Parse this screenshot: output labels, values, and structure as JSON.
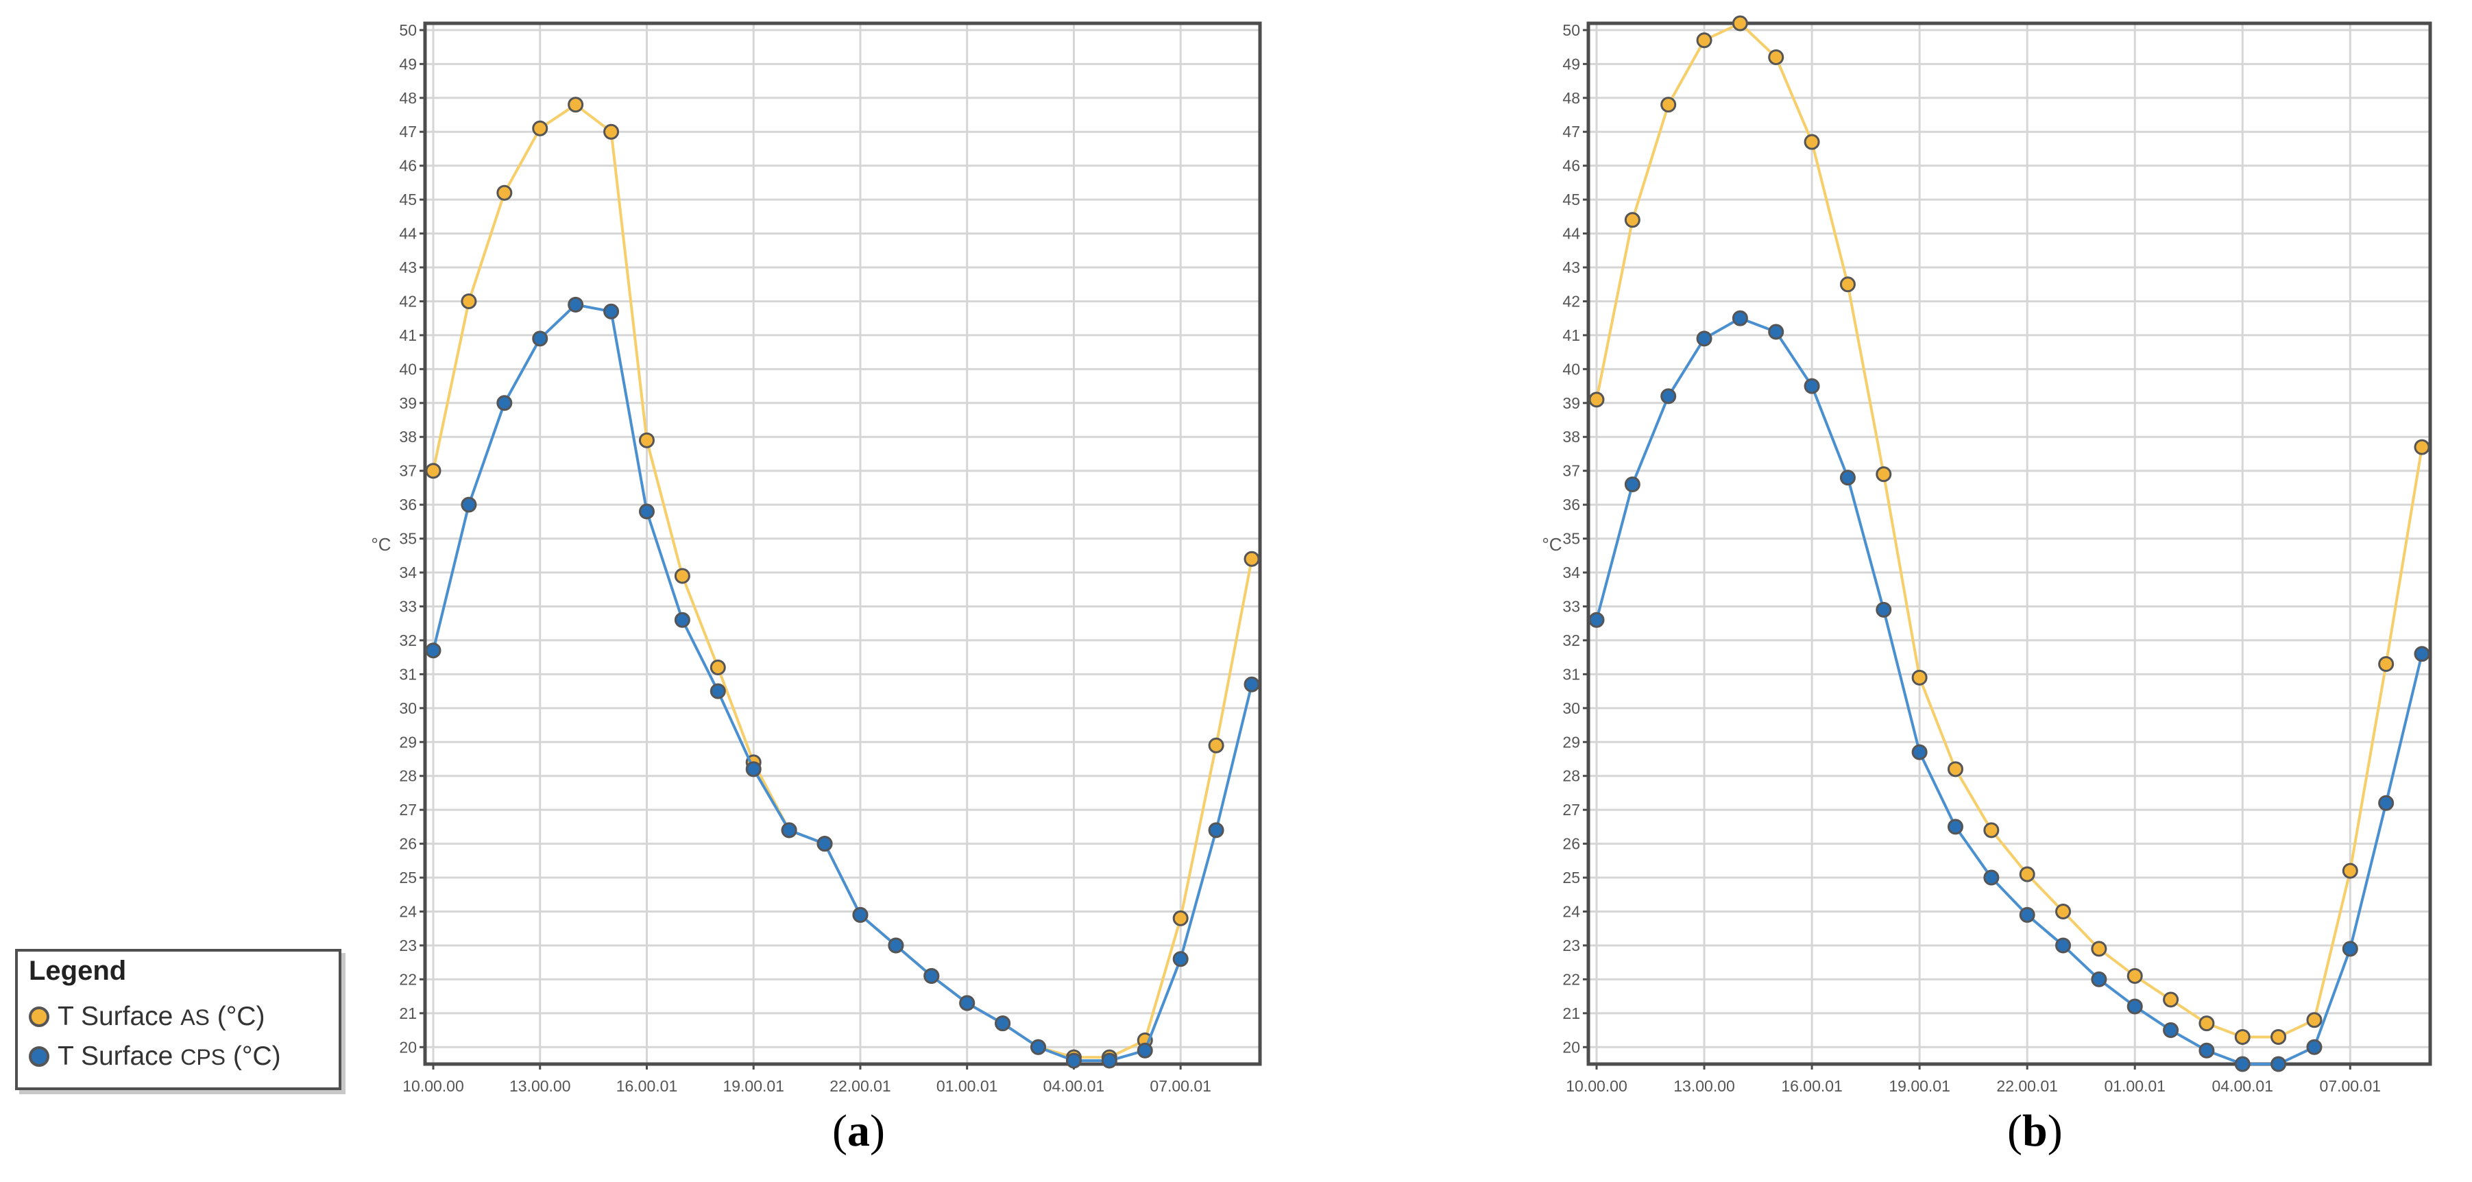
{
  "chart_data": [
    {
      "panel": "a",
      "type": "line",
      "caption_letter": "a",
      "ylabel": "°C",
      "ylim": [
        19.5,
        50.2
      ],
      "yticks": [
        20,
        21,
        22,
        23,
        24,
        25,
        26,
        27,
        28,
        29,
        30,
        31,
        32,
        33,
        34,
        35,
        36,
        37,
        38,
        39,
        40,
        41,
        42,
        43,
        44,
        45,
        46,
        47,
        48,
        49,
        50
      ],
      "x_tick_labels": [
        "10.00.00",
        "13.00.00",
        "16.00.01",
        "19.00.01",
        "22.00.01",
        "01.00.01",
        "04.00.01",
        "07.00.01"
      ],
      "x_tick_positions": [
        0,
        3,
        6,
        9,
        12,
        15,
        18,
        21
      ],
      "x_hours": [
        0,
        1,
        2,
        3,
        4,
        5,
        6,
        7,
        8,
        9,
        10,
        11,
        12,
        13,
        14,
        15,
        16,
        17,
        18,
        19,
        20,
        21,
        22,
        23
      ],
      "series": [
        {
          "name": "T Surface AS (°C)",
          "values": [
            37.0,
            42.0,
            45.2,
            47.1,
            47.8,
            47.0,
            37.9,
            33.9,
            31.2,
            28.4,
            26.4,
            26.0,
            23.9,
            23.0,
            22.1,
            21.3,
            20.7,
            20.0,
            19.7,
            19.7,
            20.2,
            23.8,
            28.9,
            34.4
          ]
        },
        {
          "name": "T Surface CPS (°C)",
          "values": [
            31.7,
            36.0,
            39.0,
            40.9,
            41.9,
            41.7,
            35.8,
            32.6,
            30.5,
            28.2,
            26.4,
            26.0,
            23.9,
            23.0,
            22.1,
            21.3,
            20.7,
            20.0,
            19.6,
            19.6,
            19.9,
            22.6,
            26.4,
            30.7
          ]
        }
      ]
    },
    {
      "panel": "b",
      "type": "line",
      "caption_letter": "b",
      "ylabel": "°C",
      "ylim": [
        19.5,
        50.2
      ],
      "yticks": [
        20,
        21,
        22,
        23,
        24,
        25,
        26,
        27,
        28,
        29,
        30,
        31,
        32,
        33,
        34,
        35,
        36,
        37,
        38,
        39,
        40,
        41,
        42,
        43,
        44,
        45,
        46,
        47,
        48,
        49,
        50
      ],
      "x_tick_labels": [
        "10.00.00",
        "13.00.00",
        "16.00.01",
        "19.00.01",
        "22.00.01",
        "01.00.01",
        "04.00.01",
        "07.00.01"
      ],
      "x_tick_positions": [
        0,
        3,
        6,
        9,
        12,
        15,
        18,
        21
      ],
      "x_hours": [
        0,
        1,
        2,
        3,
        4,
        5,
        6,
        7,
        8,
        9,
        10,
        11,
        12,
        13,
        14,
        15,
        16,
        17,
        18,
        19,
        20,
        21,
        22,
        23
      ],
      "series": [
        {
          "name": "T Surface AS (°C)",
          "values": [
            39.1,
            44.4,
            47.8,
            49.7,
            50.2,
            49.2,
            46.7,
            42.5,
            36.9,
            30.9,
            28.2,
            26.4,
            25.1,
            24.0,
            22.9,
            22.1,
            21.4,
            20.7,
            20.3,
            20.3,
            20.8,
            25.2,
            31.3,
            37.7
          ]
        },
        {
          "name": "T Surface CPS (°C)",
          "values": [
            32.6,
            36.6,
            39.2,
            40.9,
            41.5,
            41.1,
            39.5,
            36.8,
            32.9,
            28.7,
            26.5,
            25.0,
            23.9,
            23.0,
            22.0,
            21.2,
            20.5,
            19.9,
            19.5,
            19.5,
            20.0,
            22.9,
            27.2,
            31.6
          ]
        }
      ]
    }
  ],
  "legend": {
    "title": "Legend",
    "items": [
      {
        "prefix": "T Surface ",
        "sub": "AS",
        "suffix": " (°C)",
        "color": "#f3b43c"
      },
      {
        "prefix": "T Surface ",
        "sub": "CPS",
        "suffix": " (°C)",
        "color": "#2b6fb3"
      }
    ]
  },
  "colors": {
    "as_line": "#f7cf6a",
    "as_marker": "#f3b43c",
    "cps_line": "#4a90d0",
    "cps_marker": "#2b6fb3",
    "grid": "#d6d6d6",
    "frame": "#4d4d4d"
  }
}
